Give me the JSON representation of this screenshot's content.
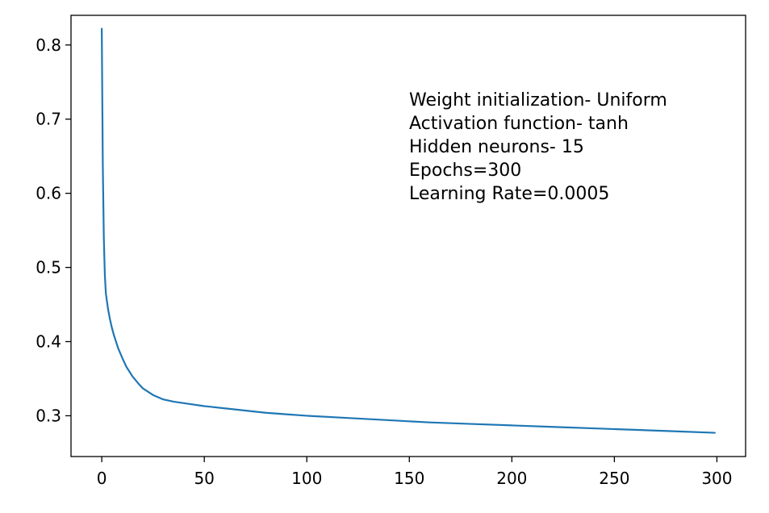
{
  "chart_data": {
    "type": "line",
    "title": "",
    "xlabel": "",
    "ylabel": "",
    "xlim": [
      -15,
      314
    ],
    "ylim": [
      0.245,
      0.84
    ],
    "xticks": [
      0,
      50,
      100,
      150,
      200,
      250,
      300
    ],
    "yticks": [
      0.3,
      0.4,
      0.5,
      0.6,
      0.7,
      0.8
    ],
    "xtick_labels": [
      "0",
      "50",
      "100",
      "150",
      "200",
      "250",
      "300"
    ],
    "ytick_labels": [
      "0.3",
      "0.4",
      "0.5",
      "0.6",
      "0.7",
      "0.8"
    ],
    "grid": false,
    "line_color": "#1f77b4",
    "annotation": [
      "Weight initialization- Uniform",
      "Activation function- tanh",
      "Hidden neurons- 15",
      "Epochs=300",
      "Learning Rate=0.0005"
    ],
    "series": [
      {
        "x": [
          0,
          0.5,
          1,
          1.5,
          2,
          3,
          4,
          5,
          6,
          8,
          10,
          12,
          15,
          18,
          20,
          25,
          30,
          35,
          40,
          50,
          60,
          70,
          80,
          90,
          100,
          120,
          140,
          160,
          180,
          200,
          220,
          240,
          260,
          280,
          299
        ],
        "y": [
          0.822,
          0.64,
          0.54,
          0.49,
          0.465,
          0.445,
          0.43,
          0.418,
          0.408,
          0.391,
          0.378,
          0.366,
          0.353,
          0.343,
          0.337,
          0.328,
          0.322,
          0.319,
          0.317,
          0.313,
          0.31,
          0.307,
          0.304,
          0.302,
          0.3,
          0.297,
          0.294,
          0.291,
          0.289,
          0.287,
          0.285,
          0.283,
          0.281,
          0.279,
          0.277
        ]
      }
    ]
  }
}
